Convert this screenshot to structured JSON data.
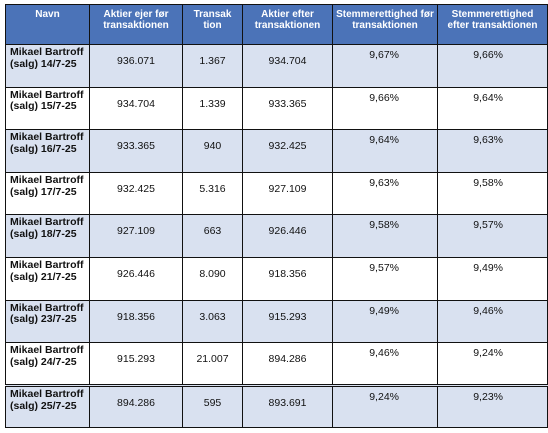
{
  "colors": {
    "header_bg": "#4b73b8",
    "shade_row": "#d9e1f0",
    "header_text": "#ffffff"
  },
  "headers": [
    "Navn",
    "Aktier ejer før transaktionen",
    "Transak tion",
    "Aktier efter transaktionen",
    "Stemmerettighed før transaktionen",
    "Stemmerettighed efter transaktionen"
  ],
  "rows": [
    {
      "name": "Mikael Bartroff (salg) 14/7-25",
      "before": "936.071",
      "tx": "1.367",
      "after": "934.704",
      "vote_before": "9,67%",
      "vote_after": "9,66%"
    },
    {
      "name": "Mikael Bartroff (salg) 15/7-25",
      "before": "934.704",
      "tx": "1.339",
      "after": "933.365",
      "vote_before": "9,66%",
      "vote_after": "9,64%"
    },
    {
      "name": "Mikael Bartroff (salg) 16/7-25",
      "before": "933.365",
      "tx": "940",
      "after": "932.425",
      "vote_before": "9,64%",
      "vote_after": "9,63%"
    },
    {
      "name": "Mikael Bartroff (salg) 17/7-25",
      "before": "932.425",
      "tx": "5.316",
      "after": "927.109",
      "vote_before": "9,63%",
      "vote_after": "9,58%"
    },
    {
      "name": "Mikael Bartroff (salg) 18/7-25",
      "before": "927.109",
      "tx": "663",
      "after": "926.446",
      "vote_before": "9,58%",
      "vote_after": "9,57%"
    },
    {
      "name": "Mikael Bartroff (salg) 21/7-25",
      "before": "926.446",
      "tx": "8.090",
      "after": "918.356",
      "vote_before": "9,57%",
      "vote_after": "9,49%"
    },
    {
      "name": "Mikael Bartroff (salg) 23/7-25",
      "before": "918.356",
      "tx": "3.063",
      "after": "915.293",
      "vote_before": "9,49%",
      "vote_after": "9,46%"
    },
    {
      "name": "Mikael Bartroff (salg) 24/7-25",
      "before": "915.293",
      "tx": "21.007",
      "after": "894.286",
      "vote_before": "9,46%",
      "vote_after": "9,24%"
    },
    {
      "name": "Mikael Bartroff (salg) 25/7-25",
      "before": "894.286",
      "tx": "595",
      "after": "893.691",
      "vote_before": "9,24%",
      "vote_after": "9,23%"
    }
  ]
}
